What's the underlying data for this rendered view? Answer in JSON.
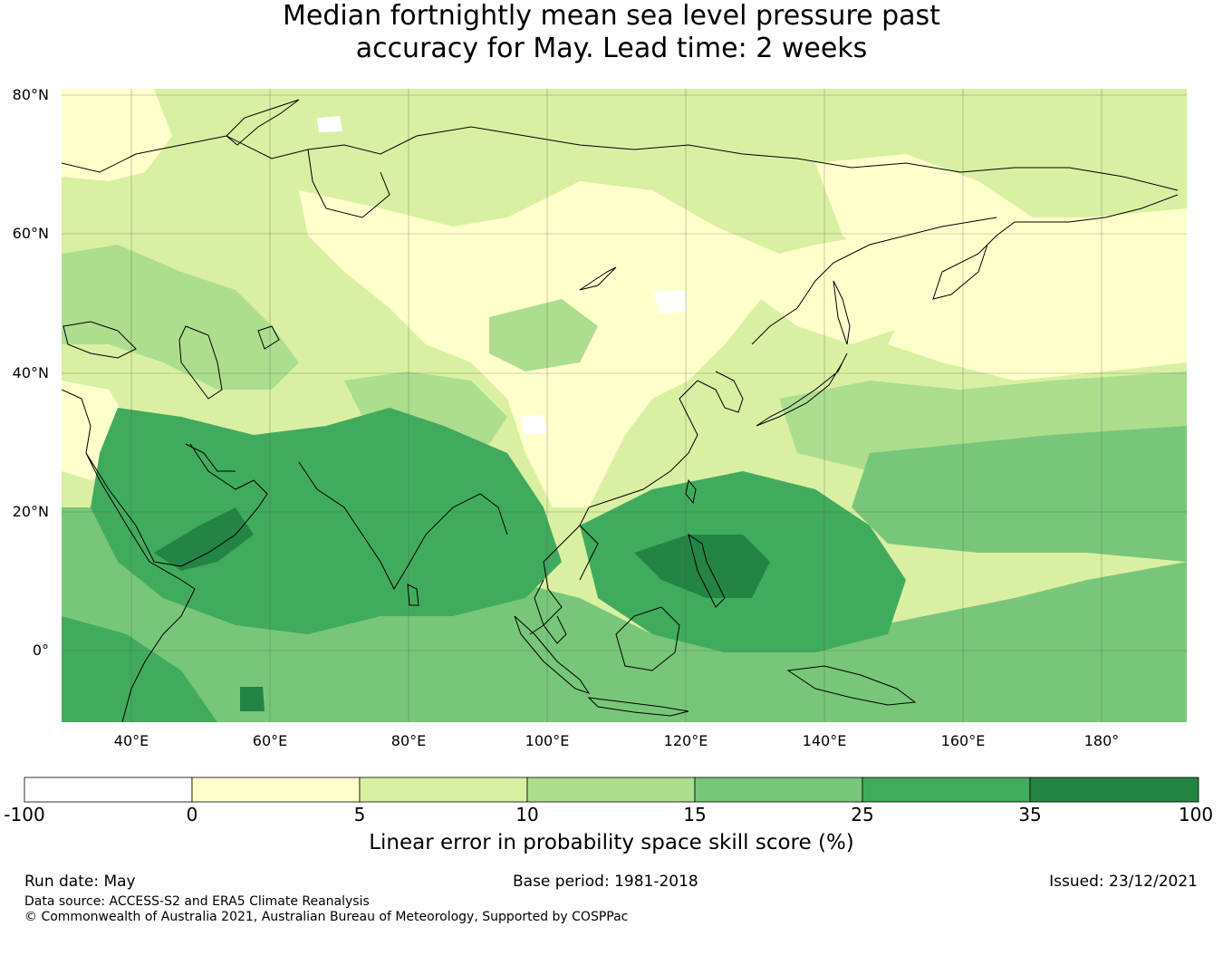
{
  "title": {
    "line1": "Median fortnightly mean sea level pressure past",
    "line2": "accuracy for May. Lead time: 2 weeks"
  },
  "map": {
    "lat_ticks": [
      "80°N",
      "60°N",
      "40°N",
      "20°N",
      "0°"
    ],
    "lon_ticks": [
      "40°E",
      "60°E",
      "80°E",
      "100°E",
      "120°E",
      "140°E",
      "160°E",
      "180°"
    ]
  },
  "colorbar": {
    "boundaries": [
      "-100",
      "0",
      "5",
      "10",
      "15",
      "25",
      "35",
      "100"
    ],
    "colors": [
      "#ffffff",
      "#ffffcc",
      "#d9f0a3",
      "#addd8e",
      "#78c679",
      "#41ab5d",
      "#238443"
    ],
    "label": "Linear error in probability space skill score (%)"
  },
  "footer": {
    "run_date": "Run date: May",
    "base_period": "Base period: 1981-2018",
    "issued": "Issued: 23/12/2021",
    "data_source": "Data source: ACCESS-S2 and ERA5 Climate Reanalysis",
    "copyright": "© Commonwealth of Australia 2021, Australian Bureau of Meteorology, Supported by COSPPac"
  }
}
